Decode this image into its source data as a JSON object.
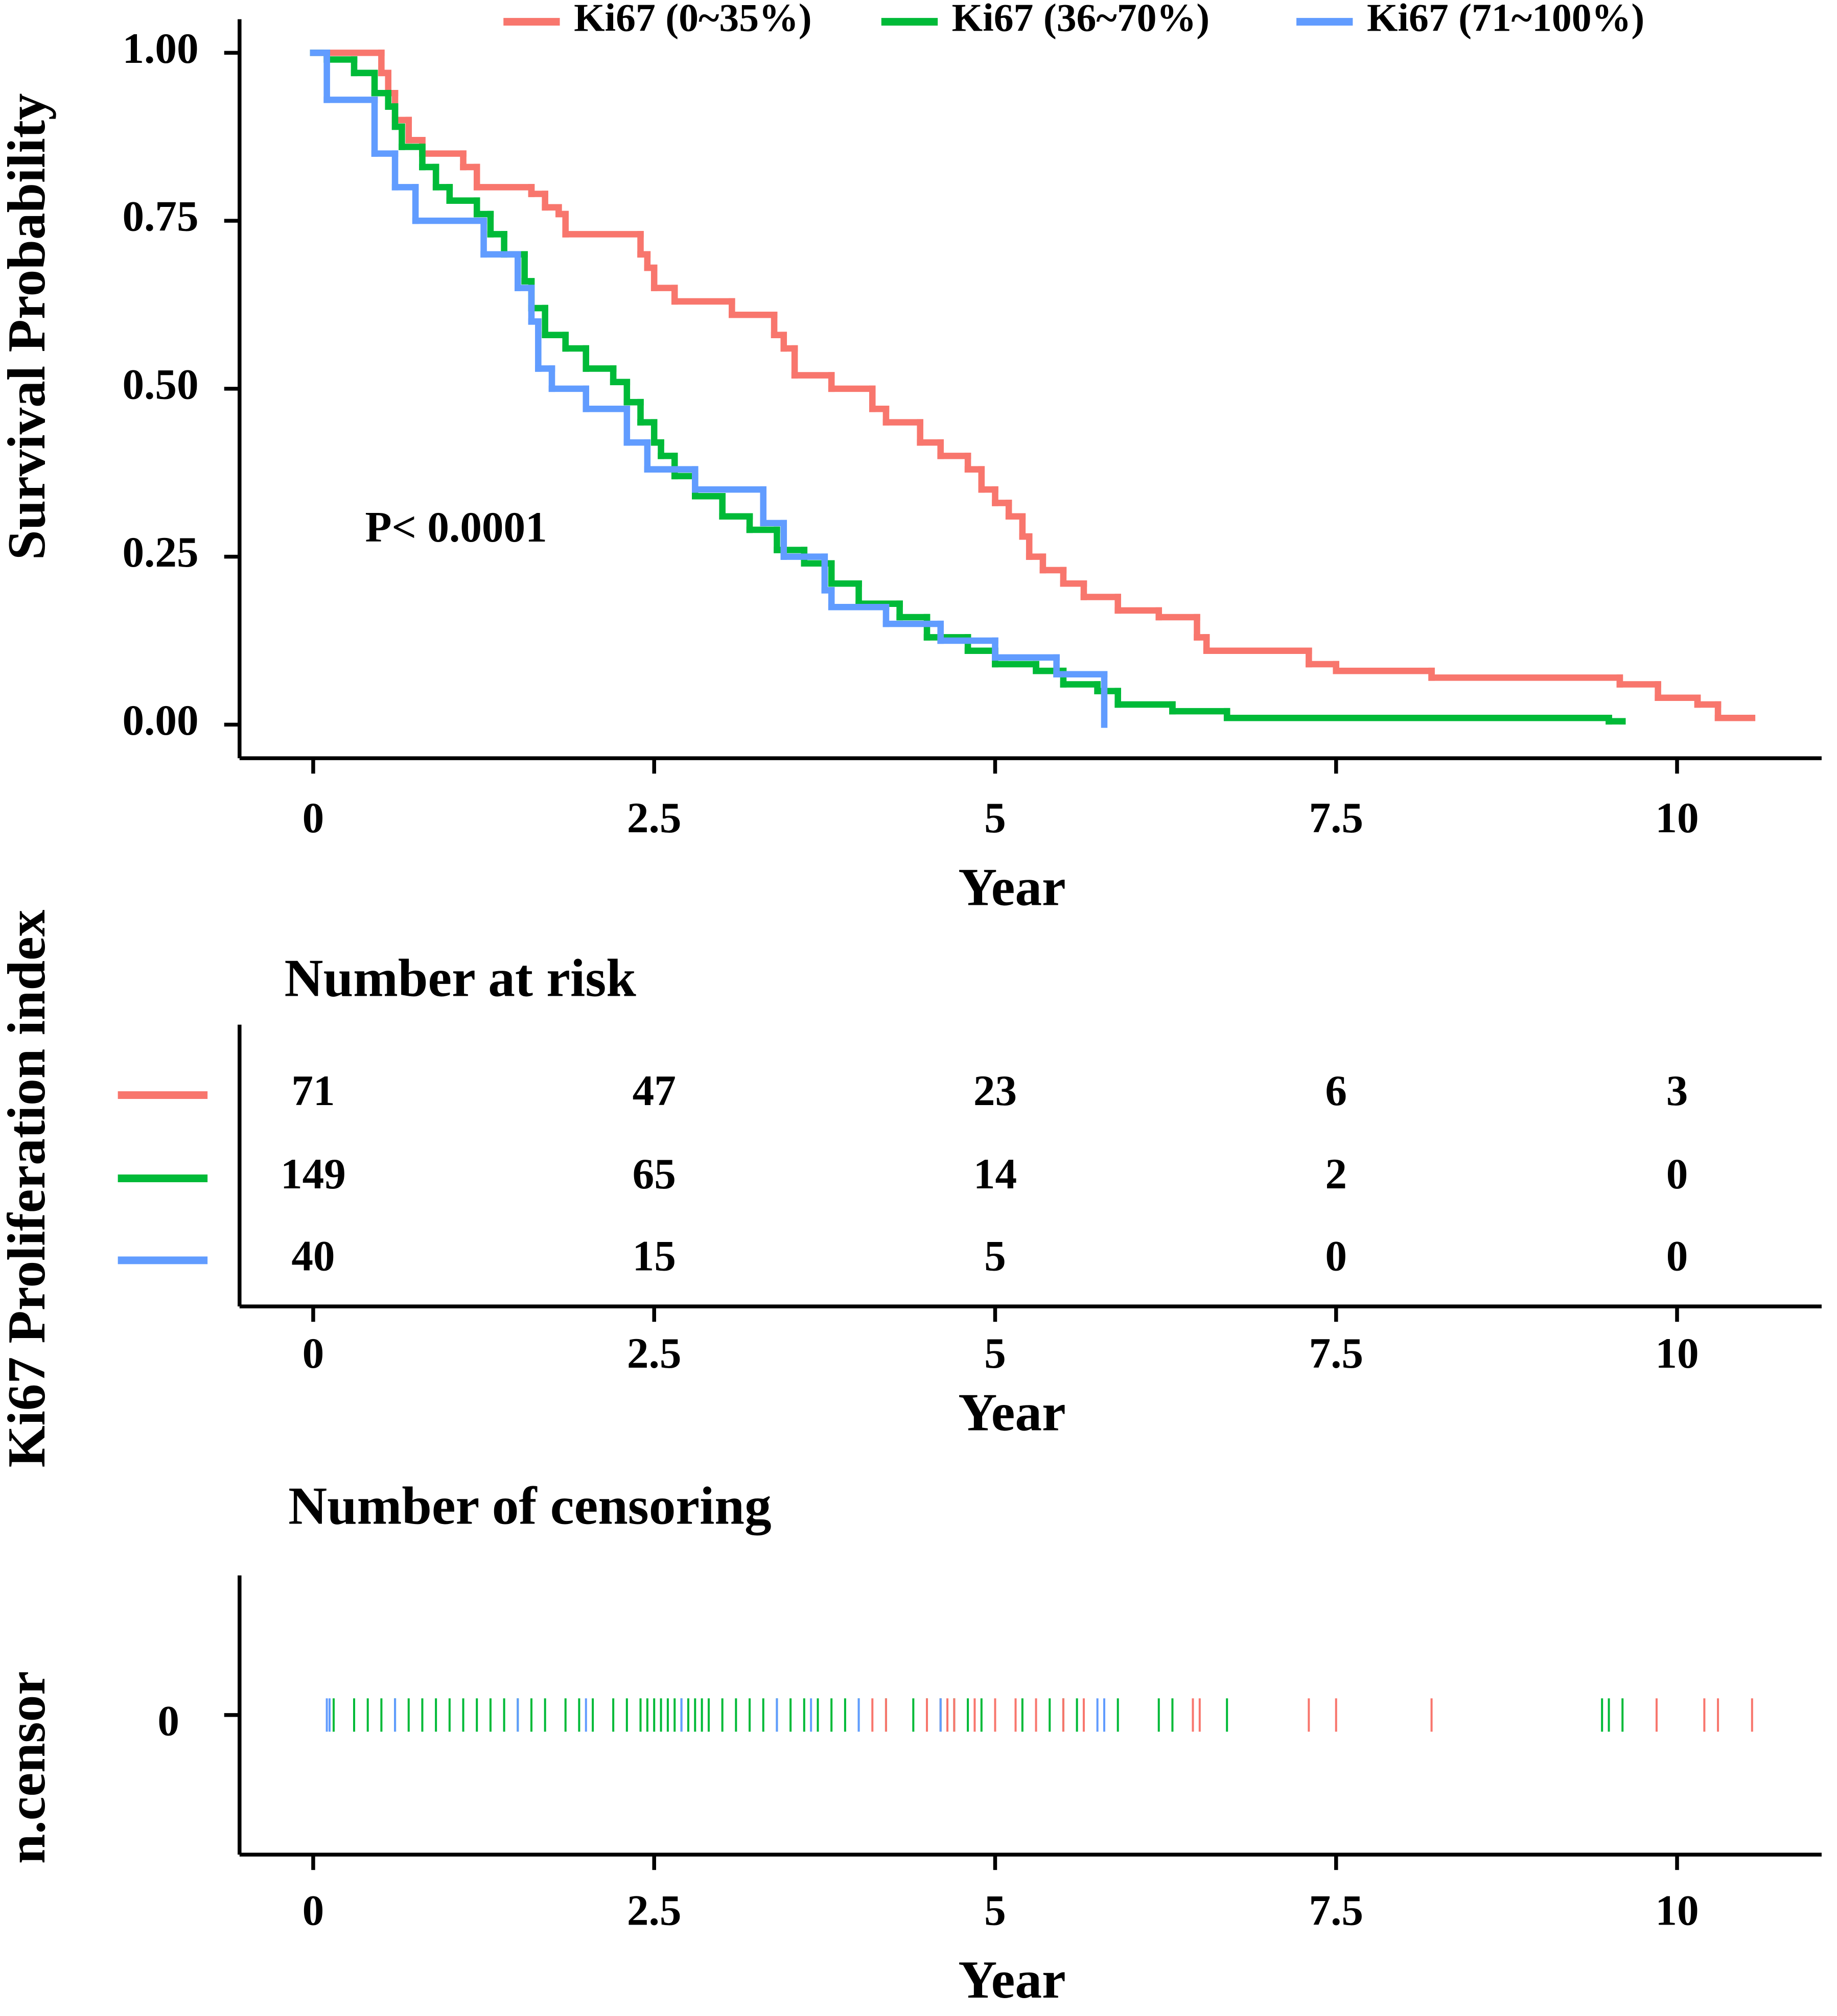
{
  "chart_data": [
    {
      "type": "step",
      "xlabel": "Year",
      "ylabel": "Survival Probability",
      "annotation": "P< 0.0001",
      "xlim": [
        -0.54,
        11.06
      ],
      "xticks": [
        0,
        2.5,
        5,
        7.5,
        10
      ],
      "ylim": [
        -0.05,
        1.05
      ],
      "yticks": [
        {
          "value": 0,
          "label": "0.00"
        },
        0.25,
        {
          "value": 0.5,
          "label": "0.50"
        },
        0.75,
        {
          "value": 1,
          "label": "1.00"
        }
      ],
      "series": [
        {
          "name": "Ki67 (0~35%)",
          "color": "#f8766d",
          "x": [
            0,
            0.5,
            0.55,
            0.6,
            0.7,
            0.8,
            1.1,
            1.2,
            1.6,
            1.7,
            1.8,
            1.85,
            2.4,
            2.45,
            2.5,
            2.65,
            3.07,
            3.38,
            3.45,
            3.53,
            3.8,
            4.1,
            4.2,
            4.45,
            4.6,
            4.8,
            4.9,
            5.0,
            5.1,
            5.2,
            5.25,
            5.35,
            5.5,
            5.65,
            5.9,
            6.2,
            6.48,
            6.55,
            7.3,
            7.5,
            8.2,
            9.58,
            9.86,
            10.15,
            10.3,
            10.55
          ],
          "values": [
            1.0,
            0.97,
            0.94,
            0.9,
            0.87,
            0.85,
            0.83,
            0.8,
            0.79,
            0.77,
            0.76,
            0.73,
            0.7,
            0.68,
            0.65,
            0.63,
            0.61,
            0.58,
            0.56,
            0.52,
            0.5,
            0.47,
            0.45,
            0.42,
            0.4,
            0.38,
            0.35,
            0.33,
            0.31,
            0.28,
            0.25,
            0.23,
            0.21,
            0.19,
            0.17,
            0.16,
            0.13,
            0.11,
            0.09,
            0.08,
            0.07,
            0.06,
            0.04,
            0.03,
            0.01,
            0.01
          ]
        },
        {
          "name": "Ki67 (36~70%)",
          "color": "#00ba38",
          "x": [
            0,
            0.1,
            0.3,
            0.45,
            0.55,
            0.6,
            0.65,
            0.8,
            0.9,
            1.0,
            1.2,
            1.3,
            1.4,
            1.55,
            1.6,
            1.7,
            1.85,
            2.0,
            2.2,
            2.3,
            2.4,
            2.5,
            2.55,
            2.65,
            2.8,
            3.0,
            3.2,
            3.4,
            3.6,
            3.8,
            4.0,
            4.3,
            4.5,
            4.8,
            5.0,
            5.3,
            5.5,
            5.75,
            5.9,
            6.3,
            6.7,
            9.5,
            9.6
          ],
          "values": [
            1.0,
            0.99,
            0.97,
            0.94,
            0.92,
            0.89,
            0.86,
            0.83,
            0.8,
            0.78,
            0.76,
            0.73,
            0.7,
            0.66,
            0.62,
            0.58,
            0.56,
            0.53,
            0.51,
            0.48,
            0.45,
            0.42,
            0.4,
            0.37,
            0.34,
            0.31,
            0.29,
            0.26,
            0.24,
            0.21,
            0.18,
            0.16,
            0.13,
            0.11,
            0.09,
            0.08,
            0.06,
            0.05,
            0.03,
            0.02,
            0.01,
            0.005,
            0.005
          ]
        },
        {
          "name": "Ki67 (71~100%)",
          "color": "#619cff",
          "x": [
            0,
            0.1,
            0.45,
            0.6,
            0.75,
            1.25,
            1.5,
            1.6,
            1.65,
            1.75,
            2.0,
            2.3,
            2.45,
            2.8,
            3.3,
            3.45,
            3.75,
            3.8,
            4.2,
            4.6,
            5.0,
            5.45,
            5.8
          ],
          "values": [
            1.0,
            0.93,
            0.85,
            0.8,
            0.75,
            0.7,
            0.65,
            0.6,
            0.53,
            0.5,
            0.47,
            0.42,
            0.38,
            0.35,
            0.3,
            0.25,
            0.2,
            0.175,
            0.15,
            0.125,
            0.1,
            0.075,
            0.0
          ]
        }
      ]
    },
    {
      "type": "risk_table",
      "title": "Number at risk",
      "xlabel": "Year",
      "ylabel": "Ki67 Proliferation index",
      "xlim": [
        -0.54,
        11.06
      ],
      "xticks": [
        0,
        2.5,
        5,
        7.5,
        10
      ],
      "x": [
        0,
        2.5,
        5,
        7.5,
        10
      ],
      "series": [
        {
          "color": "#f8766d",
          "values": [
            71,
            47,
            23,
            6,
            3
          ]
        },
        {
          "color": "#00ba38",
          "values": [
            149,
            65,
            14,
            2,
            0
          ]
        },
        {
          "color": "#619cff",
          "values": [
            40,
            15,
            5,
            0,
            0
          ]
        }
      ]
    },
    {
      "type": "rug",
      "title": "Number of censoring",
      "xlabel": "Year",
      "ylabel": "n.censor",
      "xlim": [
        -0.54,
        11.06
      ],
      "xticks": [
        0,
        2.5,
        5,
        7.5,
        10
      ],
      "ylim": [
        -1,
        1
      ],
      "yticks": [
        0
      ],
      "series": [
        {
          "color": "#00ba38",
          "x": [
            0.15,
            0.3,
            0.4,
            0.5,
            0.6,
            0.7,
            0.8,
            0.9,
            1.0,
            1.1,
            1.2,
            1.3,
            1.4,
            1.5,
            1.6,
            1.7,
            1.85,
            1.95,
            2.05,
            2.2,
            2.3,
            2.4,
            2.45,
            2.5,
            2.55,
            2.6,
            2.65,
            2.7,
            2.75,
            2.8,
            2.85,
            2.9,
            3.0,
            3.1,
            3.2,
            3.3,
            3.4,
            3.5,
            3.6,
            3.7,
            3.8,
            3.9,
            4.0,
            4.2,
            4.4,
            4.5,
            4.6,
            4.7,
            4.8,
            4.9,
            5.2,
            5.4,
            5.5,
            5.6,
            5.9,
            6.2,
            6.3,
            6.7,
            9.45,
            9.5,
            9.6
          ]
        },
        {
          "color": "#f8766d",
          "x": [
            4.1,
            4.2,
            4.5,
            4.6,
            4.65,
            4.7,
            4.85,
            5.0,
            5.15,
            5.3,
            5.5,
            5.65,
            6.45,
            6.5,
            7.3,
            7.5,
            8.2,
            9.85,
            10.2,
            10.3,
            10.55
          ]
        },
        {
          "color": "#619cff",
          "x": [
            0.1,
            0.12,
            0.6,
            1.5,
            2.0,
            2.7,
            3.4,
            3.65,
            4.0,
            4.6,
            5.75,
            5.8
          ]
        }
      ]
    }
  ]
}
